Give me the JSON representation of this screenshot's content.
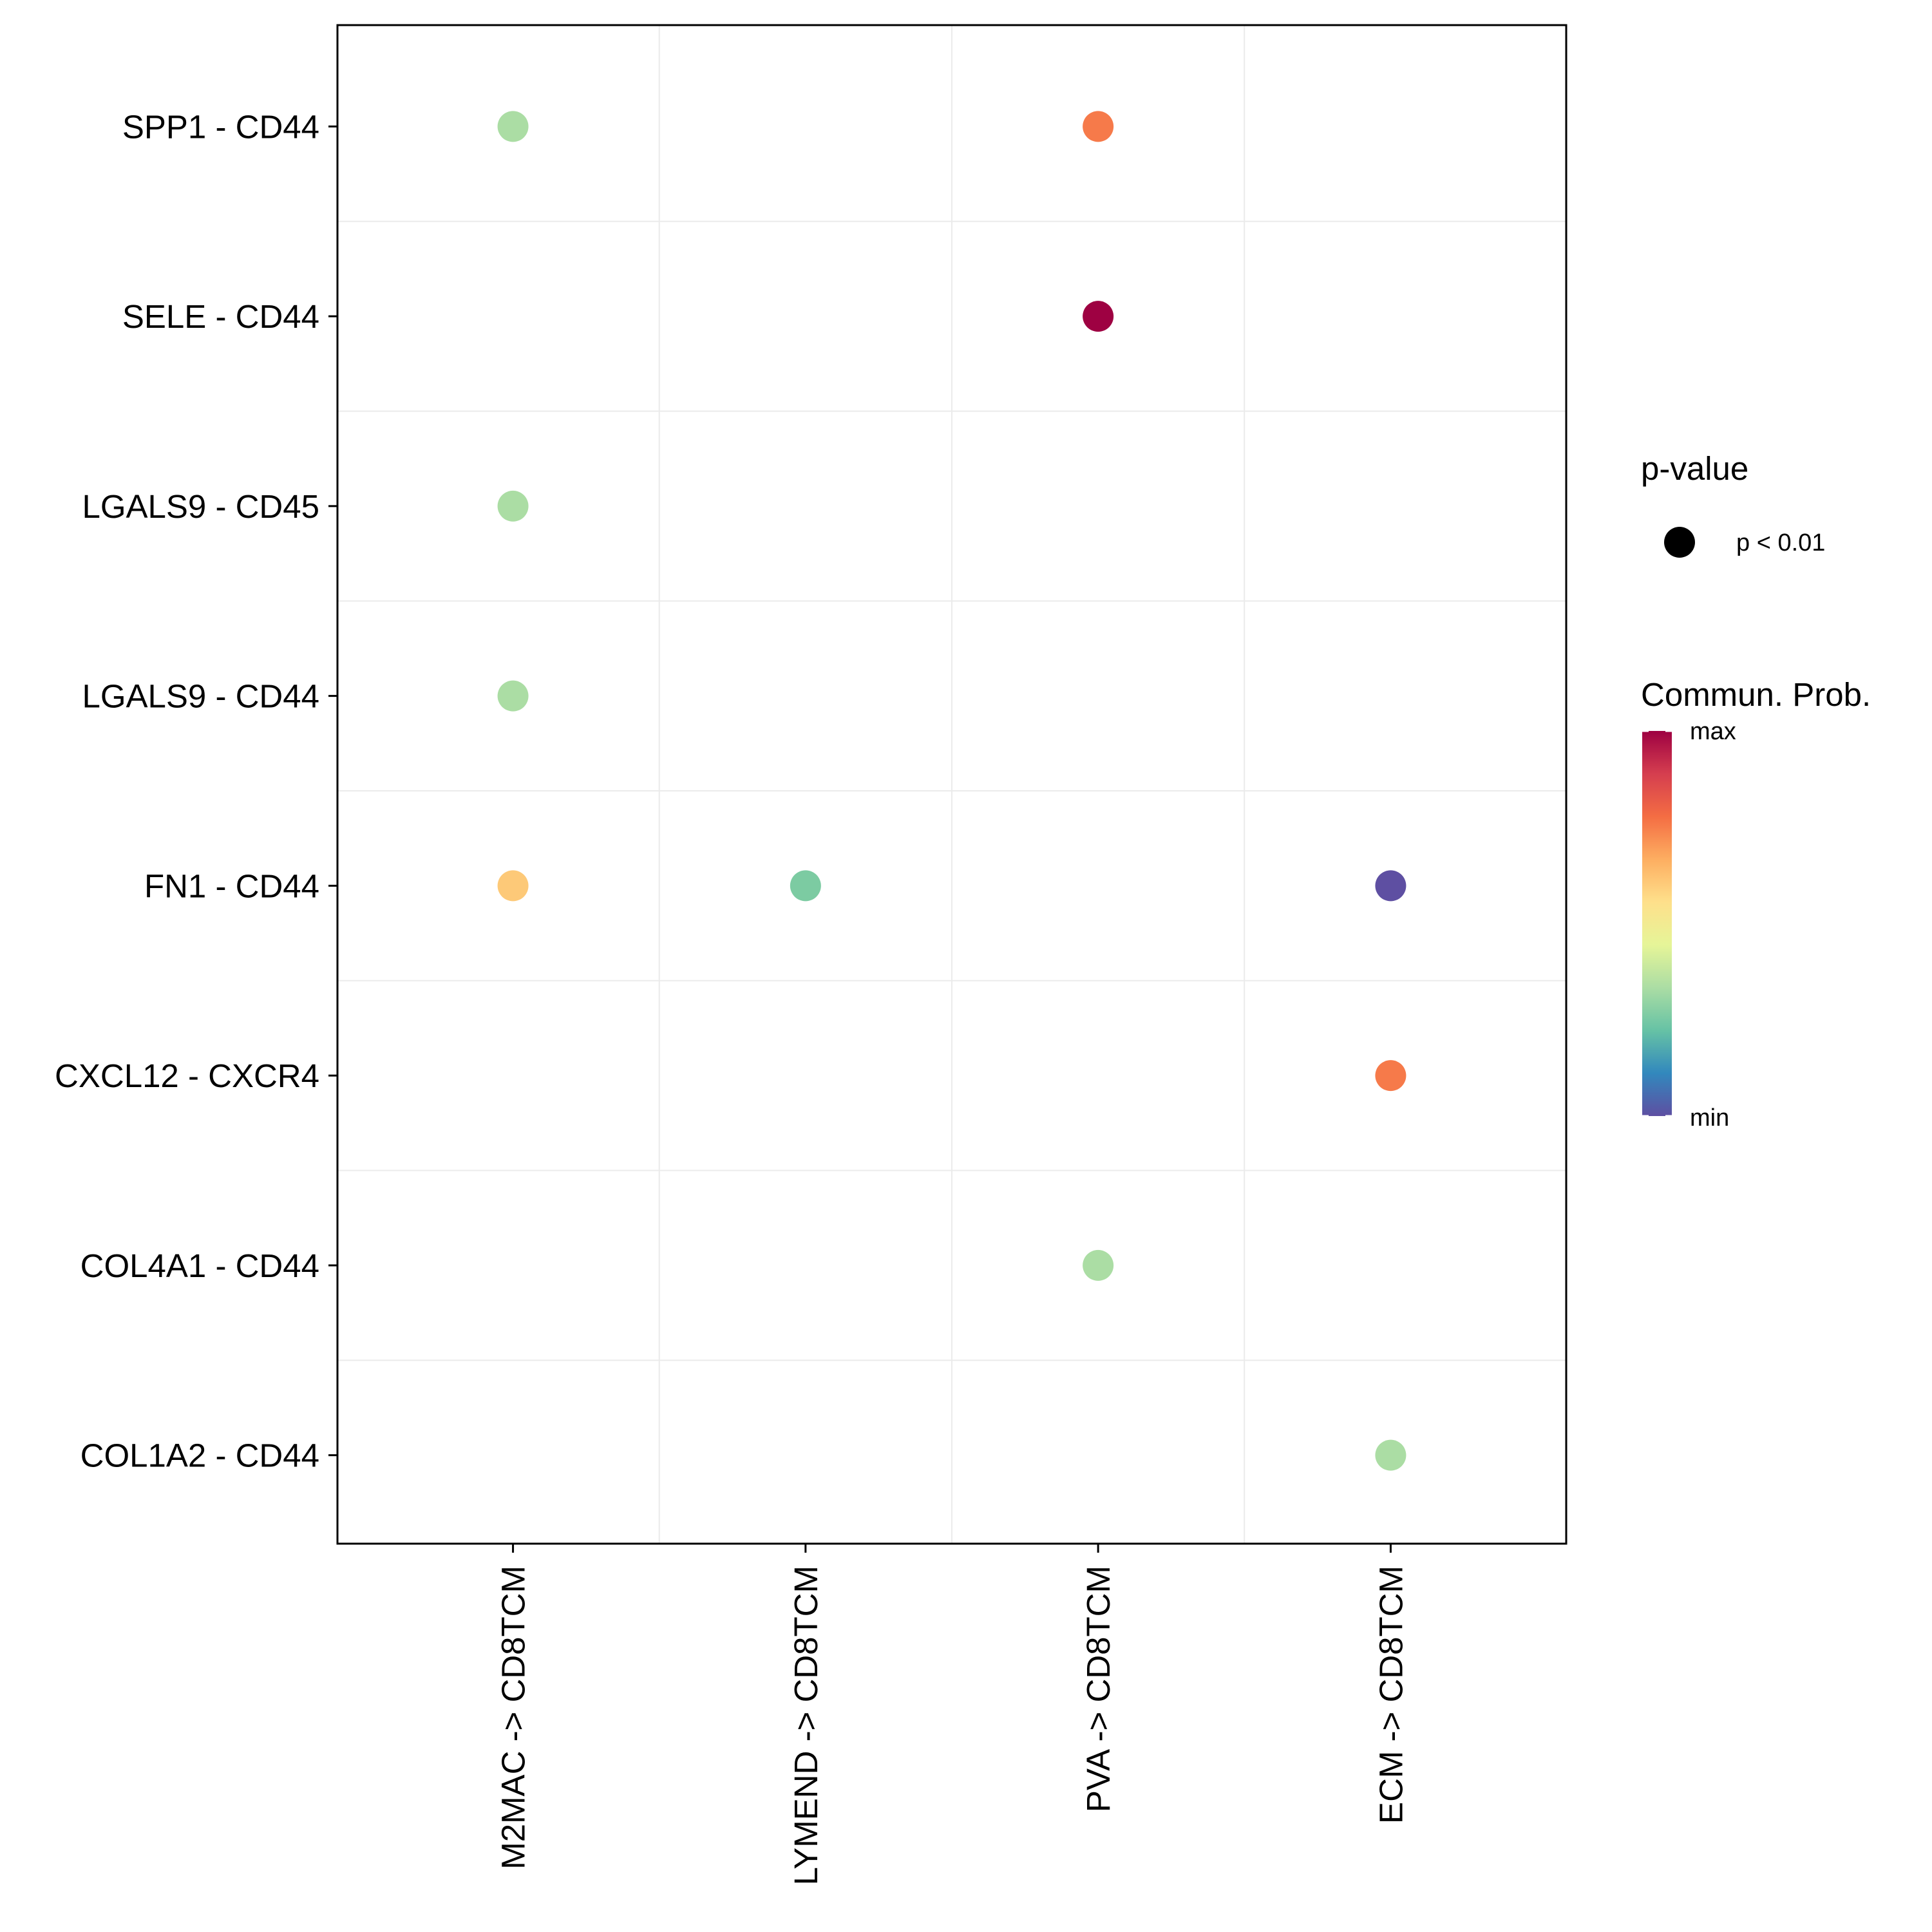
{
  "chart_data": {
    "type": "scatter",
    "title": "",
    "xlabel": "",
    "ylabel": "",
    "grid": true,
    "x_categories": [
      "M2MAC -> CD8TCM",
      "LYMEND -> CD8TCM",
      "PVA -> CD8TCM",
      "ECM -> CD8TCM"
    ],
    "y_categories": [
      "SPP1 - CD44",
      "SELE - CD44",
      "LGALS9 - CD45",
      "LGALS9 - CD44",
      "FN1 - CD44",
      "CXCL12 - CXCR4",
      "COL4A1 - CD44",
      "COL1A2 - CD44"
    ],
    "points": [
      {
        "x": "M2MAC -> CD8TCM",
        "y": "SPP1 - CD44",
        "prob": 0.4,
        "color": "#abdda4"
      },
      {
        "x": "PVA -> CD8TCM",
        "y": "SPP1 - CD44",
        "prob": 0.82,
        "color": "#f67a4a"
      },
      {
        "x": "PVA -> CD8TCM",
        "y": "SELE - CD44",
        "prob": 1.0,
        "color": "#9e0142"
      },
      {
        "x": "M2MAC -> CD8TCM",
        "y": "LGALS9 - CD45",
        "prob": 0.4,
        "color": "#abdda4"
      },
      {
        "x": "M2MAC -> CD8TCM",
        "y": "LGALS9 - CD44",
        "prob": 0.4,
        "color": "#abdda4"
      },
      {
        "x": "M2MAC -> CD8TCM",
        "y": "FN1 - CD44",
        "prob": 0.66,
        "color": "#fdc978"
      },
      {
        "x": "LYMEND -> CD8TCM",
        "y": "FN1 - CD44",
        "prob": 0.3,
        "color": "#7ccba2"
      },
      {
        "x": "ECM -> CD8TCM",
        "y": "FN1 - CD44",
        "prob": 0.0,
        "color": "#5e4fa2"
      },
      {
        "x": "ECM -> CD8TCM",
        "y": "CXCL12 - CXCR4",
        "prob": 0.82,
        "color": "#f67a4a"
      },
      {
        "x": "PVA -> CD8TCM",
        "y": "COL4A1 - CD44",
        "prob": 0.4,
        "color": "#abdda4"
      },
      {
        "x": "ECM -> CD8TCM",
        "y": "COL1A2 - CD44",
        "prob": 0.4,
        "color": "#abdda4"
      }
    ],
    "legend": {
      "size_title": "p-value",
      "size_label": "p < 0.01",
      "size_color": "#000000",
      "color_title": "Commun. Prob.",
      "color_max_label": "max",
      "color_min_label": "min",
      "colorbar": [
        "#9e0142",
        "#d53e4f",
        "#f46d43",
        "#fdae61",
        "#fee08b",
        "#e6f598",
        "#abdda4",
        "#66c2a5",
        "#3288bd",
        "#5e4fa2"
      ],
      "placement": "right"
    }
  }
}
